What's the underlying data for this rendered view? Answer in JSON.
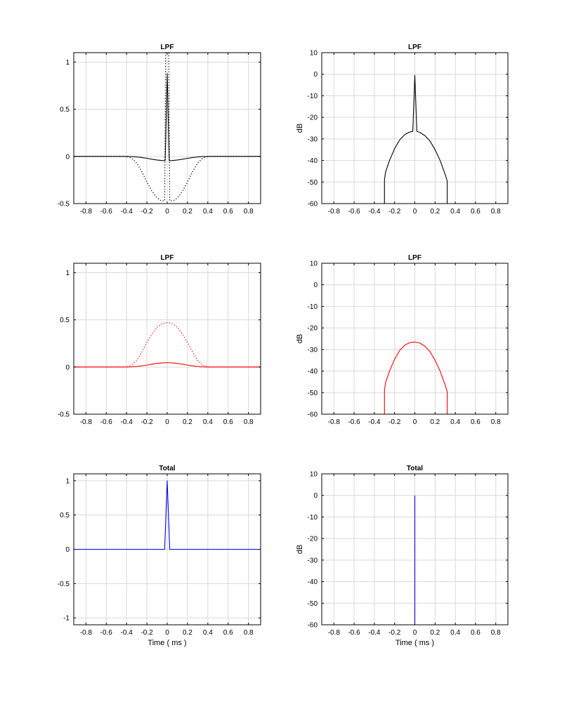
{
  "chart_data": [
    {
      "type": "line",
      "title": "LPF",
      "xlabel": "",
      "ylabel": "",
      "xlim": [
        -0.92,
        0.92
      ],
      "ylim": [
        -0.5,
        1.1
      ],
      "xticks": [
        "-0.8",
        "-0.6",
        "-0.4",
        "-0.2",
        "0",
        "0.2",
        "0.4",
        "0.6",
        "0.8"
      ],
      "yticks": [
        "-0.5",
        "0",
        "0.5",
        "1"
      ],
      "grid": true,
      "series": [
        {
          "style": "solid",
          "color": "#000000",
          "x": [
            -0.92,
            -0.4,
            -0.35,
            -0.3,
            -0.25,
            -0.2,
            -0.15,
            -0.1,
            -0.05,
            -0.02,
            0,
            0.02,
            0.05,
            0.1,
            0.15,
            0.2,
            0.25,
            0.3,
            0.35,
            0.4,
            0.92
          ],
          "y": [
            0,
            0,
            -0.002,
            -0.006,
            -0.012,
            -0.02,
            -0.03,
            -0.038,
            -0.044,
            -0.046,
            0.88,
            -0.046,
            -0.044,
            -0.038,
            -0.03,
            -0.02,
            -0.012,
            -0.006,
            -0.002,
            0,
            0
          ]
        },
        {
          "style": "dotted",
          "color": "#000000",
          "x": [
            -0.92,
            -0.4,
            -0.35,
            -0.3,
            -0.25,
            -0.2,
            -0.15,
            -0.1,
            -0.06,
            -0.025,
            -0.015,
            -0.01,
            0.01,
            0.015,
            0.025,
            0.06,
            0.1,
            0.15,
            0.2,
            0.25,
            0.3,
            0.35,
            0.4,
            0.92
          ],
          "y": [
            0,
            0,
            -0.02,
            -0.07,
            -0.16,
            -0.27,
            -0.37,
            -0.44,
            -0.47,
            -0.47,
            1.15,
            1.15,
            1.15,
            1.15,
            -0.47,
            -0.47,
            -0.44,
            -0.37,
            -0.27,
            -0.16,
            -0.07,
            -0.02,
            0,
            0
          ]
        }
      ]
    },
    {
      "type": "line",
      "title": "LPF",
      "xlabel": "",
      "ylabel": "dB",
      "xlim": [
        -0.92,
        0.92
      ],
      "ylim": [
        -60,
        10
      ],
      "xticks": [
        "-0.8",
        "-0.6",
        "-0.4",
        "-0.2",
        "0",
        "0.2",
        "0.4",
        "0.6",
        "0.8"
      ],
      "yticks": [
        "-60",
        "-50",
        "-40",
        "-30",
        "-20",
        "-10",
        "0",
        "10"
      ],
      "grid": true,
      "series": [
        {
          "style": "solid",
          "color": "#000000",
          "x": [
            -0.3,
            -0.3,
            -0.29,
            -0.25,
            -0.2,
            -0.15,
            -0.1,
            -0.05,
            -0.02,
            0,
            0.02,
            0.05,
            0.1,
            0.15,
            0.2,
            0.25,
            0.3,
            0.32,
            0.32
          ],
          "y": [
            -60,
            -49,
            -45.5,
            -40,
            -34.5,
            -30.5,
            -28,
            -26.8,
            -26.5,
            -0.5,
            -26.5,
            -27,
            -28.5,
            -31,
            -35,
            -40,
            -46.5,
            -49.5,
            -60
          ]
        }
      ]
    },
    {
      "type": "line",
      "title": "LPF",
      "xlabel": "",
      "ylabel": "",
      "xlim": [
        -0.92,
        0.92
      ],
      "ylim": [
        -0.5,
        1.1
      ],
      "xticks": [
        "-0.8",
        "-0.6",
        "-0.4",
        "-0.2",
        "0",
        "0.2",
        "0.4",
        "0.6",
        "0.8"
      ],
      "yticks": [
        "-0.5",
        "0",
        "0.5",
        "1"
      ],
      "grid": true,
      "series": [
        {
          "style": "solid",
          "color": "#ff0000",
          "x": [
            -0.92,
            -0.4,
            -0.35,
            -0.3,
            -0.25,
            -0.2,
            -0.15,
            -0.1,
            -0.05,
            0,
            0.05,
            0.1,
            0.15,
            0.2,
            0.25,
            0.3,
            0.35,
            0.4,
            0.92
          ],
          "y": [
            0,
            0,
            0.002,
            0.006,
            0.012,
            0.02,
            0.03,
            0.038,
            0.044,
            0.046,
            0.044,
            0.038,
            0.03,
            0.02,
            0.012,
            0.006,
            0.002,
            0,
            0
          ]
        },
        {
          "style": "dotted",
          "color": "#ff0000",
          "x": [
            -0.92,
            -0.4,
            -0.35,
            -0.3,
            -0.25,
            -0.2,
            -0.15,
            -0.1,
            -0.05,
            0,
            0.05,
            0.1,
            0.15,
            0.2,
            0.25,
            0.3,
            0.35,
            0.4,
            0.92
          ],
          "y": [
            0,
            0,
            0.02,
            0.07,
            0.16,
            0.26,
            0.35,
            0.42,
            0.46,
            0.47,
            0.46,
            0.42,
            0.35,
            0.26,
            0.16,
            0.07,
            0.02,
            0,
            0
          ]
        }
      ]
    },
    {
      "type": "line",
      "title": "LPF",
      "xlabel": "",
      "ylabel": "dB",
      "xlim": [
        -0.92,
        0.92
      ],
      "ylim": [
        -60,
        10
      ],
      "xticks": [
        "-0.8",
        "-0.6",
        "-0.4",
        "-0.2",
        "0",
        "0.2",
        "0.4",
        "0.6",
        "0.8"
      ],
      "yticks": [
        "-60",
        "-50",
        "-40",
        "-30",
        "-20",
        "-10",
        "0",
        "10"
      ],
      "grid": true,
      "series": [
        {
          "style": "solid",
          "color": "#ff0000",
          "x": [
            -0.3,
            -0.3,
            -0.29,
            -0.25,
            -0.2,
            -0.15,
            -0.1,
            -0.05,
            0,
            0.05,
            0.1,
            0.15,
            0.2,
            0.25,
            0.3,
            0.32,
            0.32
          ],
          "y": [
            -60,
            -49,
            -45.5,
            -40,
            -34.5,
            -30.5,
            -28,
            -26.8,
            -26.5,
            -27,
            -28.5,
            -31,
            -35,
            -40,
            -46.5,
            -49.5,
            -60
          ]
        }
      ]
    },
    {
      "type": "line",
      "title": "Total",
      "xlabel": "Time ( ms )",
      "ylabel": "",
      "xlim": [
        -0.92,
        0.92
      ],
      "ylim": [
        -1.1,
        1.1
      ],
      "xticks": [
        "-0.8",
        "-0.6",
        "-0.4",
        "-0.2",
        "0",
        "0.2",
        "0.4",
        "0.6",
        "0.8"
      ],
      "yticks": [
        "-1",
        "-0.5",
        "0",
        "0.5",
        "1"
      ],
      "grid": true,
      "series": [
        {
          "style": "solid",
          "color": "#0000ff",
          "x": [
            -0.92,
            -0.025,
            0,
            0.025,
            0.92
          ],
          "y": [
            0,
            0,
            1,
            0,
            0
          ]
        }
      ]
    },
    {
      "type": "line",
      "title": "Total",
      "xlabel": "Time ( ms )",
      "ylabel": "dB",
      "xlim": [
        -0.92,
        0.92
      ],
      "ylim": [
        -60,
        10
      ],
      "xticks": [
        "-0.8",
        "-0.6",
        "-0.4",
        "-0.2",
        "0",
        "0.2",
        "0.4",
        "0.6",
        "0.8"
      ],
      "yticks": [
        "-60",
        "-50",
        "-40",
        "-30",
        "-20",
        "-10",
        "0",
        "10"
      ],
      "grid": true,
      "series": [
        {
          "style": "solid",
          "color": "#0000ff",
          "x": [
            0,
            0
          ],
          "y": [
            -60,
            0
          ]
        }
      ]
    }
  ]
}
